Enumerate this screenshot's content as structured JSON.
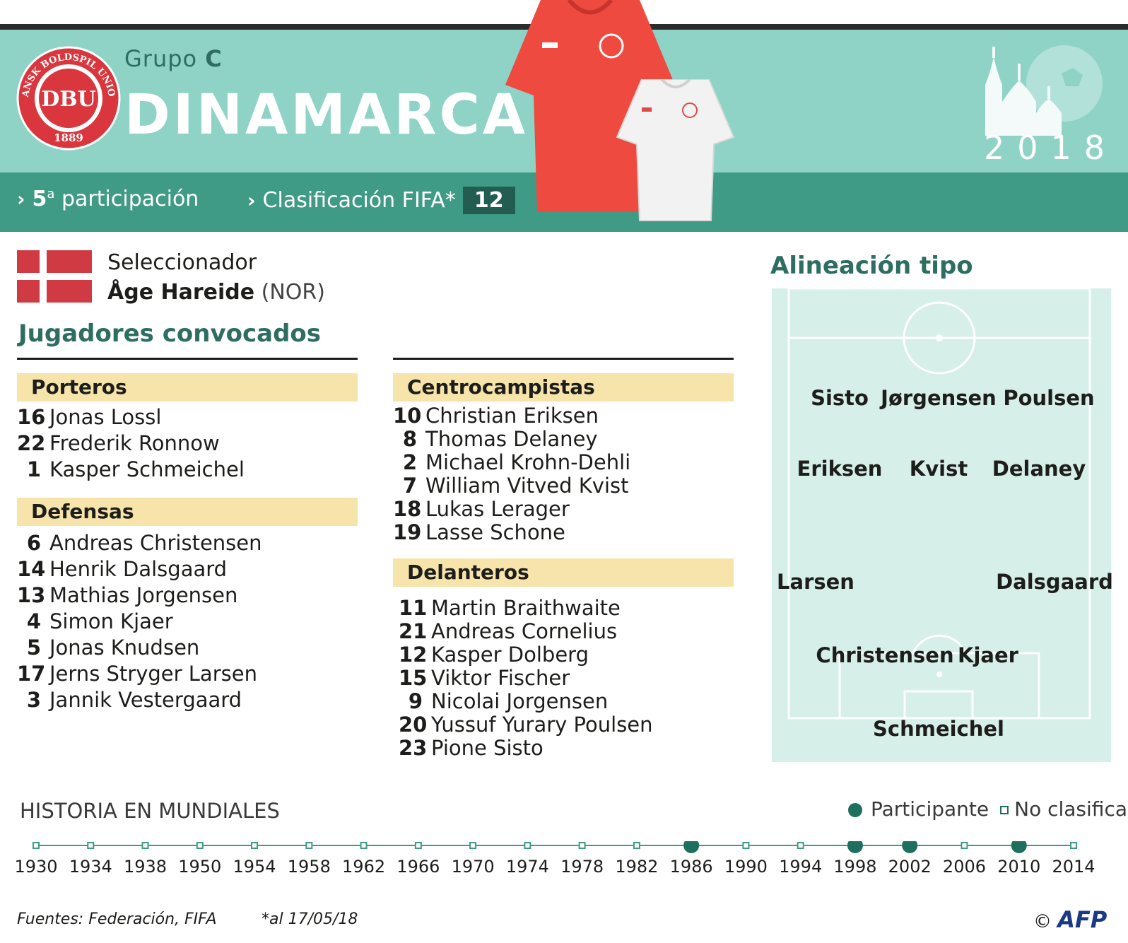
{
  "header": {
    "group_prefix": "Grupo ",
    "group_letter": "C",
    "country": "DINAMARCA",
    "logo_text": "DBU",
    "logo_ring_top": "DANSK BOLDSPIL UNION",
    "logo_ring_bottom": "1889",
    "event_year": "2018",
    "participation_number": "5",
    "participation_sup": "a",
    "participation_label": "participación",
    "fifa_label": "Clasificación FIFA*",
    "fifa_rank": "12"
  },
  "colors": {
    "header_bg": "#8ed3c6",
    "info_bg": "#3f9a86",
    "accent": "#2e6e62",
    "position_bar": "#f6e4ab",
    "flag_red": "#d03a43"
  },
  "coach": {
    "label": "Seleccionador",
    "name": "Åge Hareide",
    "nationality": "(NOR)"
  },
  "squad": {
    "title": "Jugadores convocados",
    "groups": [
      {
        "name": "Porteros",
        "players": [
          {
            "num": "16",
            "name": "Jonas Lossl"
          },
          {
            "num": "22",
            "name": "Frederik Ronnow"
          },
          {
            "num": "1",
            "name": "Kasper Schmeichel"
          }
        ]
      },
      {
        "name": "Defensas",
        "players": [
          {
            "num": "6",
            "name": "Andreas Christensen"
          },
          {
            "num": "14",
            "name": "Henrik Dalsgaard"
          },
          {
            "num": "13",
            "name": "Mathias Jorgensen"
          },
          {
            "num": "4",
            "name": "Simon Kjaer"
          },
          {
            "num": "5",
            "name": "Jonas Knudsen"
          },
          {
            "num": "17",
            "name": "Jerns Stryger Larsen"
          },
          {
            "num": "3",
            "name": "Jannik Vestergaard"
          }
        ]
      },
      {
        "name": "Centrocampistas",
        "players": [
          {
            "num": "10",
            "name": "Christian Eriksen"
          },
          {
            "num": "8",
            "name": "Thomas Delaney"
          },
          {
            "num": "2",
            "name": "Michael Krohn-Dehli"
          },
          {
            "num": "7",
            "name": "William Vitved Kvist"
          },
          {
            "num": "18",
            "name": "Lukas Lerager"
          },
          {
            "num": "19",
            "name": "Lasse Schone"
          }
        ]
      },
      {
        "name": "Delanteros",
        "players": [
          {
            "num": "11",
            "name": "Martin Braithwaite"
          },
          {
            "num": "21",
            "name": "Andreas Cornelius"
          },
          {
            "num": "12",
            "name": "Kasper Dolberg"
          },
          {
            "num": "15",
            "name": "Viktor Fischer"
          },
          {
            "num": "9",
            "name": "Nicolai Jorgensen"
          },
          {
            "num": "20",
            "name": "Yussuf Yurary Poulsen"
          },
          {
            "num": "23",
            "name": "Pione Sisto"
          }
        ]
      }
    ]
  },
  "lineup": {
    "title": "Alineación tipo",
    "players": [
      "Sisto",
      "Jørgensen",
      "Poulsen",
      "Eriksen",
      "Kvist",
      "Delaney",
      "Larsen",
      "Dalsgaard",
      "Christensen",
      "Kjaer",
      "Schmeichel"
    ]
  },
  "history": {
    "title": "HISTORIA EN MUNDIALES",
    "legend_participant": "Participante",
    "legend_not_qualified": "No clasificado",
    "years": [
      "1930",
      "1934",
      "1938",
      "1950",
      "1954",
      "1958",
      "1962",
      "1966",
      "1970",
      "1974",
      "1978",
      "1982",
      "1986",
      "1990",
      "1994",
      "1998",
      "2002",
      "2006",
      "2010",
      "2014"
    ],
    "participated": [
      "1986",
      "1998",
      "2002",
      "2010"
    ]
  },
  "footer": {
    "source": "Fuentes: Federación, FIFA",
    "date_note": "*al 17/05/18",
    "copyright_symbol": "©",
    "agency": "AFP"
  }
}
